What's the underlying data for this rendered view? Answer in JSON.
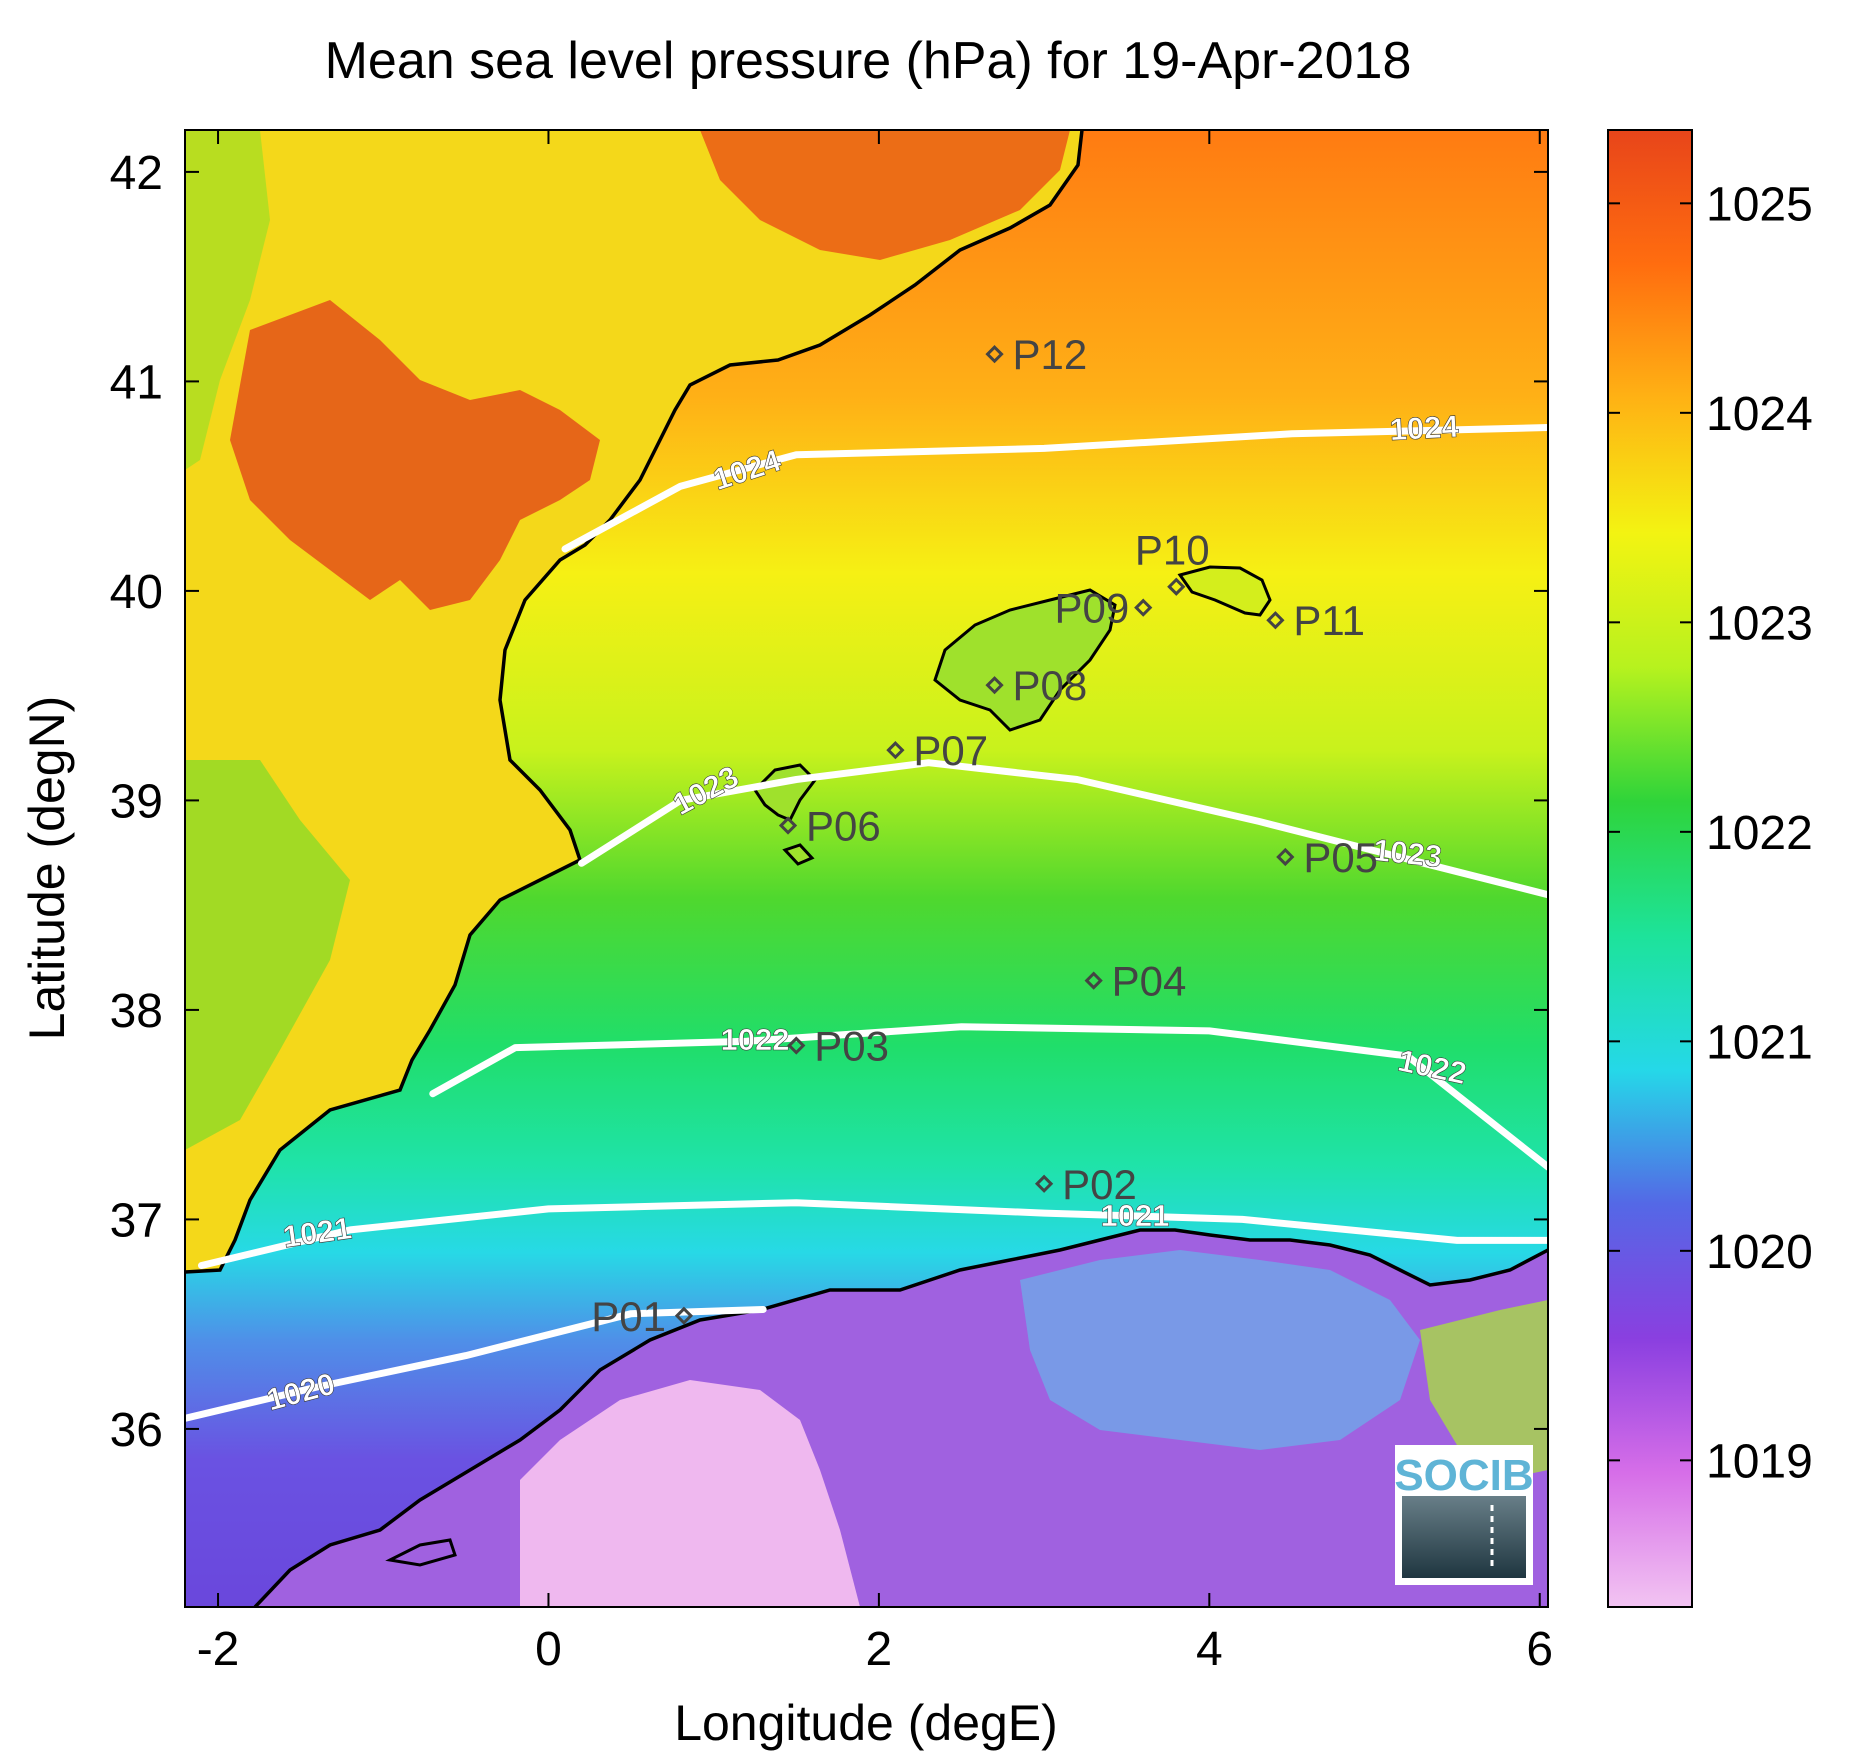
{
  "title": "Mean sea level pressure (hPa) for 19-Apr-2018",
  "axes": {
    "xlabel": "Longitude (degE)",
    "ylabel": "Latitude (degN)",
    "xlim": [
      -2.2,
      6.05
    ],
    "ylim": [
      35.15,
      42.2
    ],
    "xticks": [
      -2,
      0,
      2,
      4,
      6
    ],
    "yticks": [
      36,
      37,
      38,
      39,
      40,
      41,
      42
    ],
    "xtick_labels": [
      "-2",
      "0",
      "2",
      "4",
      "6"
    ],
    "ytick_labels": [
      "36",
      "37",
      "38",
      "39",
      "40",
      "41",
      "42"
    ]
  },
  "colorbar": {
    "range": [
      1018.3,
      1025.35
    ],
    "ticks": [
      1019,
      1020,
      1021,
      1022,
      1023,
      1024,
      1025
    ],
    "tick_labels": [
      "1019",
      "1020",
      "1021",
      "1022",
      "1023",
      "1024",
      "1025"
    ],
    "colors": [
      "#f2c4f2",
      "#d66ee8",
      "#8a3fe0",
      "#5468e6",
      "#25d8e8",
      "#1de39a",
      "#2fd43a",
      "#b7f21e",
      "#f3f312",
      "#ffb214",
      "#ff6d0f",
      "#e8451a"
    ]
  },
  "chart_data": {
    "type": "heatmap",
    "variable": "Mean sea level pressure (hPa)",
    "date": "19-Apr-2018",
    "contours": [
      {
        "level": "1020",
        "label": "1020"
      },
      {
        "level": "1021",
        "label": "1021"
      },
      {
        "level": "1022",
        "label": "1022"
      },
      {
        "level": "1023",
        "label": "1023"
      },
      {
        "level": "1024",
        "label": "1024"
      }
    ],
    "stations": [
      {
        "id": "P01",
        "lon": 0.82,
        "lat": 36.54
      },
      {
        "id": "P02",
        "lon": 3.0,
        "lat": 37.17
      },
      {
        "id": "P03",
        "lon": 1.5,
        "lat": 37.83
      },
      {
        "id": "P04",
        "lon": 3.3,
        "lat": 38.14
      },
      {
        "id": "P05",
        "lon": 4.46,
        "lat": 38.73
      },
      {
        "id": "P06",
        "lon": 1.45,
        "lat": 38.88
      },
      {
        "id": "P07",
        "lon": 2.1,
        "lat": 39.24
      },
      {
        "id": "P08",
        "lon": 2.7,
        "lat": 39.55
      },
      {
        "id": "P09",
        "lon": 3.6,
        "lat": 39.92
      },
      {
        "id": "P10",
        "lon": 3.8,
        "lat": 40.02
      },
      {
        "id": "P11",
        "lon": 4.4,
        "lat": 39.86
      },
      {
        "id": "P12",
        "lon": 2.7,
        "lat": 41.13
      }
    ]
  },
  "logo": {
    "text": "SOCIB"
  }
}
